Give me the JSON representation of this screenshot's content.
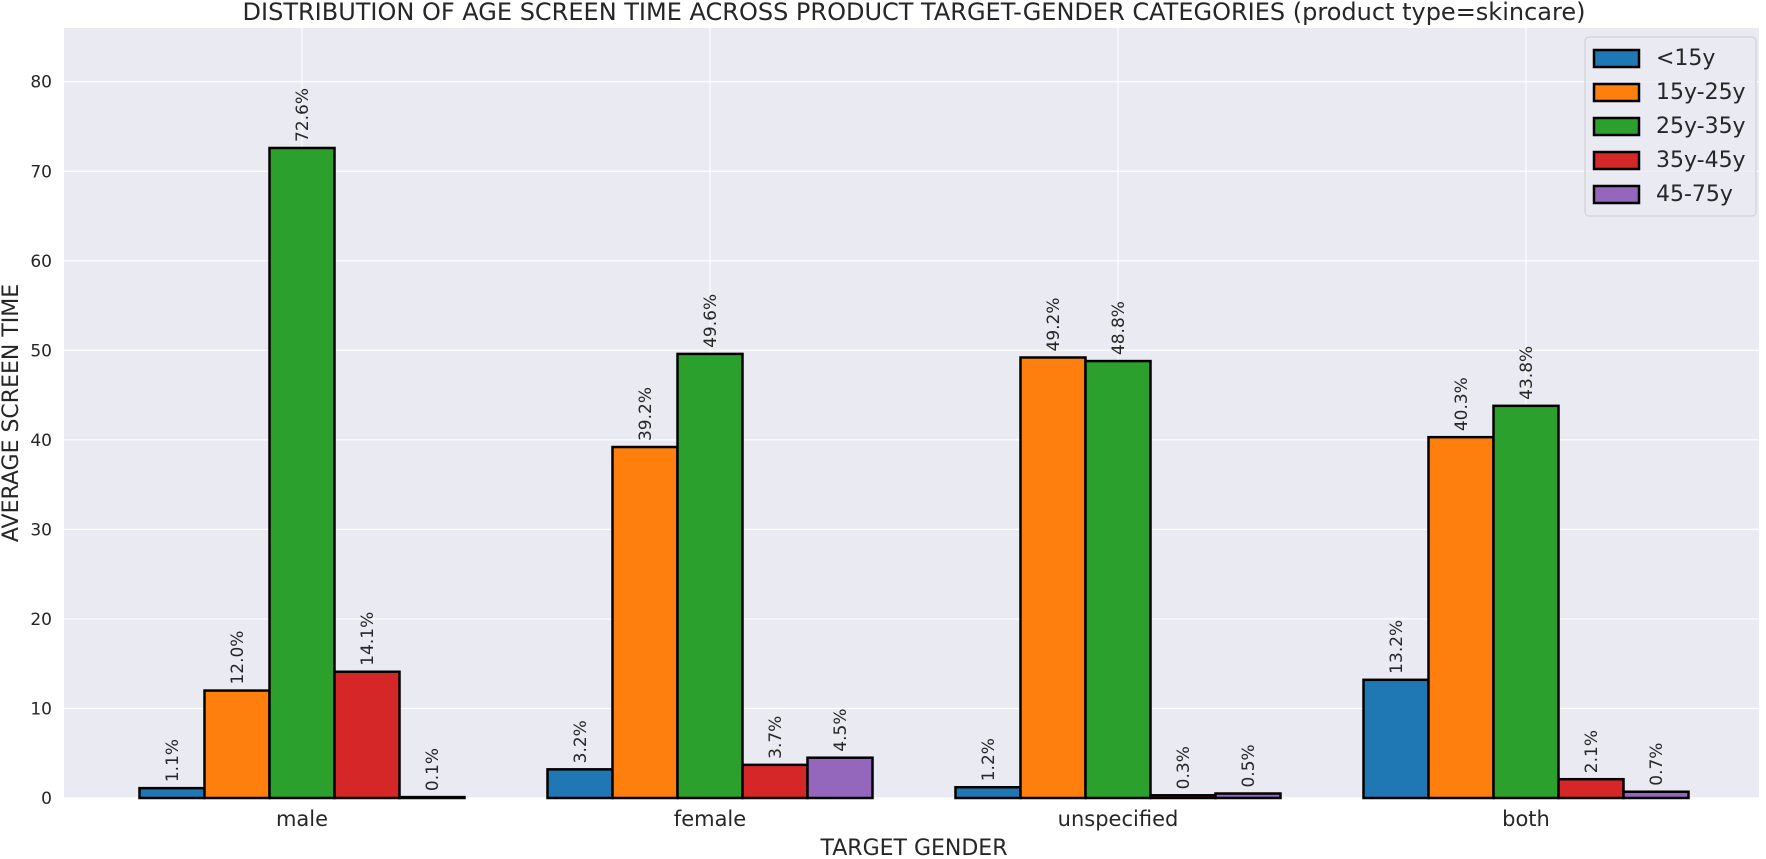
{
  "chart_data": {
    "type": "bar",
    "title": "DISTRIBUTION OF AGE SCREEN TIME ACROSS PRODUCT TARGET-GENDER CATEGORIES (product type=skincare)",
    "xlabel": "TARGET GENDER",
    "ylabel": "AVERAGE SCREEN TIME",
    "categories": [
      "male",
      "female",
      "unspecified",
      "both"
    ],
    "ylim": [
      0,
      86
    ],
    "yticks": [
      0,
      10,
      20,
      30,
      40,
      50,
      60,
      70,
      80
    ],
    "grid": true,
    "legend_position": "top-right",
    "series": [
      {
        "name": "<15y",
        "color": "#1f77b4",
        "values": [
          1.1,
          3.2,
          1.2,
          13.2
        ],
        "labels": [
          "1.1%",
          "3.2%",
          "1.2%",
          "13.2%"
        ]
      },
      {
        "name": "15y-25y",
        "color": "#ff7f0e",
        "values": [
          12.0,
          39.2,
          49.2,
          40.3
        ],
        "labels": [
          "12.0%",
          "39.2%",
          "49.2%",
          "40.3%"
        ]
      },
      {
        "name": "25y-35y",
        "color": "#2ca02c",
        "values": [
          72.6,
          49.6,
          48.8,
          43.8
        ],
        "labels": [
          "72.6%",
          "49.6%",
          "48.8%",
          "43.8%"
        ]
      },
      {
        "name": "35y-45y",
        "color": "#d62728",
        "values": [
          14.1,
          3.7,
          0.3,
          2.1
        ],
        "labels": [
          "14.1%",
          "3.7%",
          "0.3%",
          "2.1%"
        ]
      },
      {
        "name": "45-75y",
        "color": "#9467bd",
        "values": [
          0.1,
          4.5,
          0.5,
          0.7
        ],
        "labels": [
          "0.1%",
          "4.5%",
          "0.5%",
          "0.7%"
        ]
      }
    ]
  }
}
